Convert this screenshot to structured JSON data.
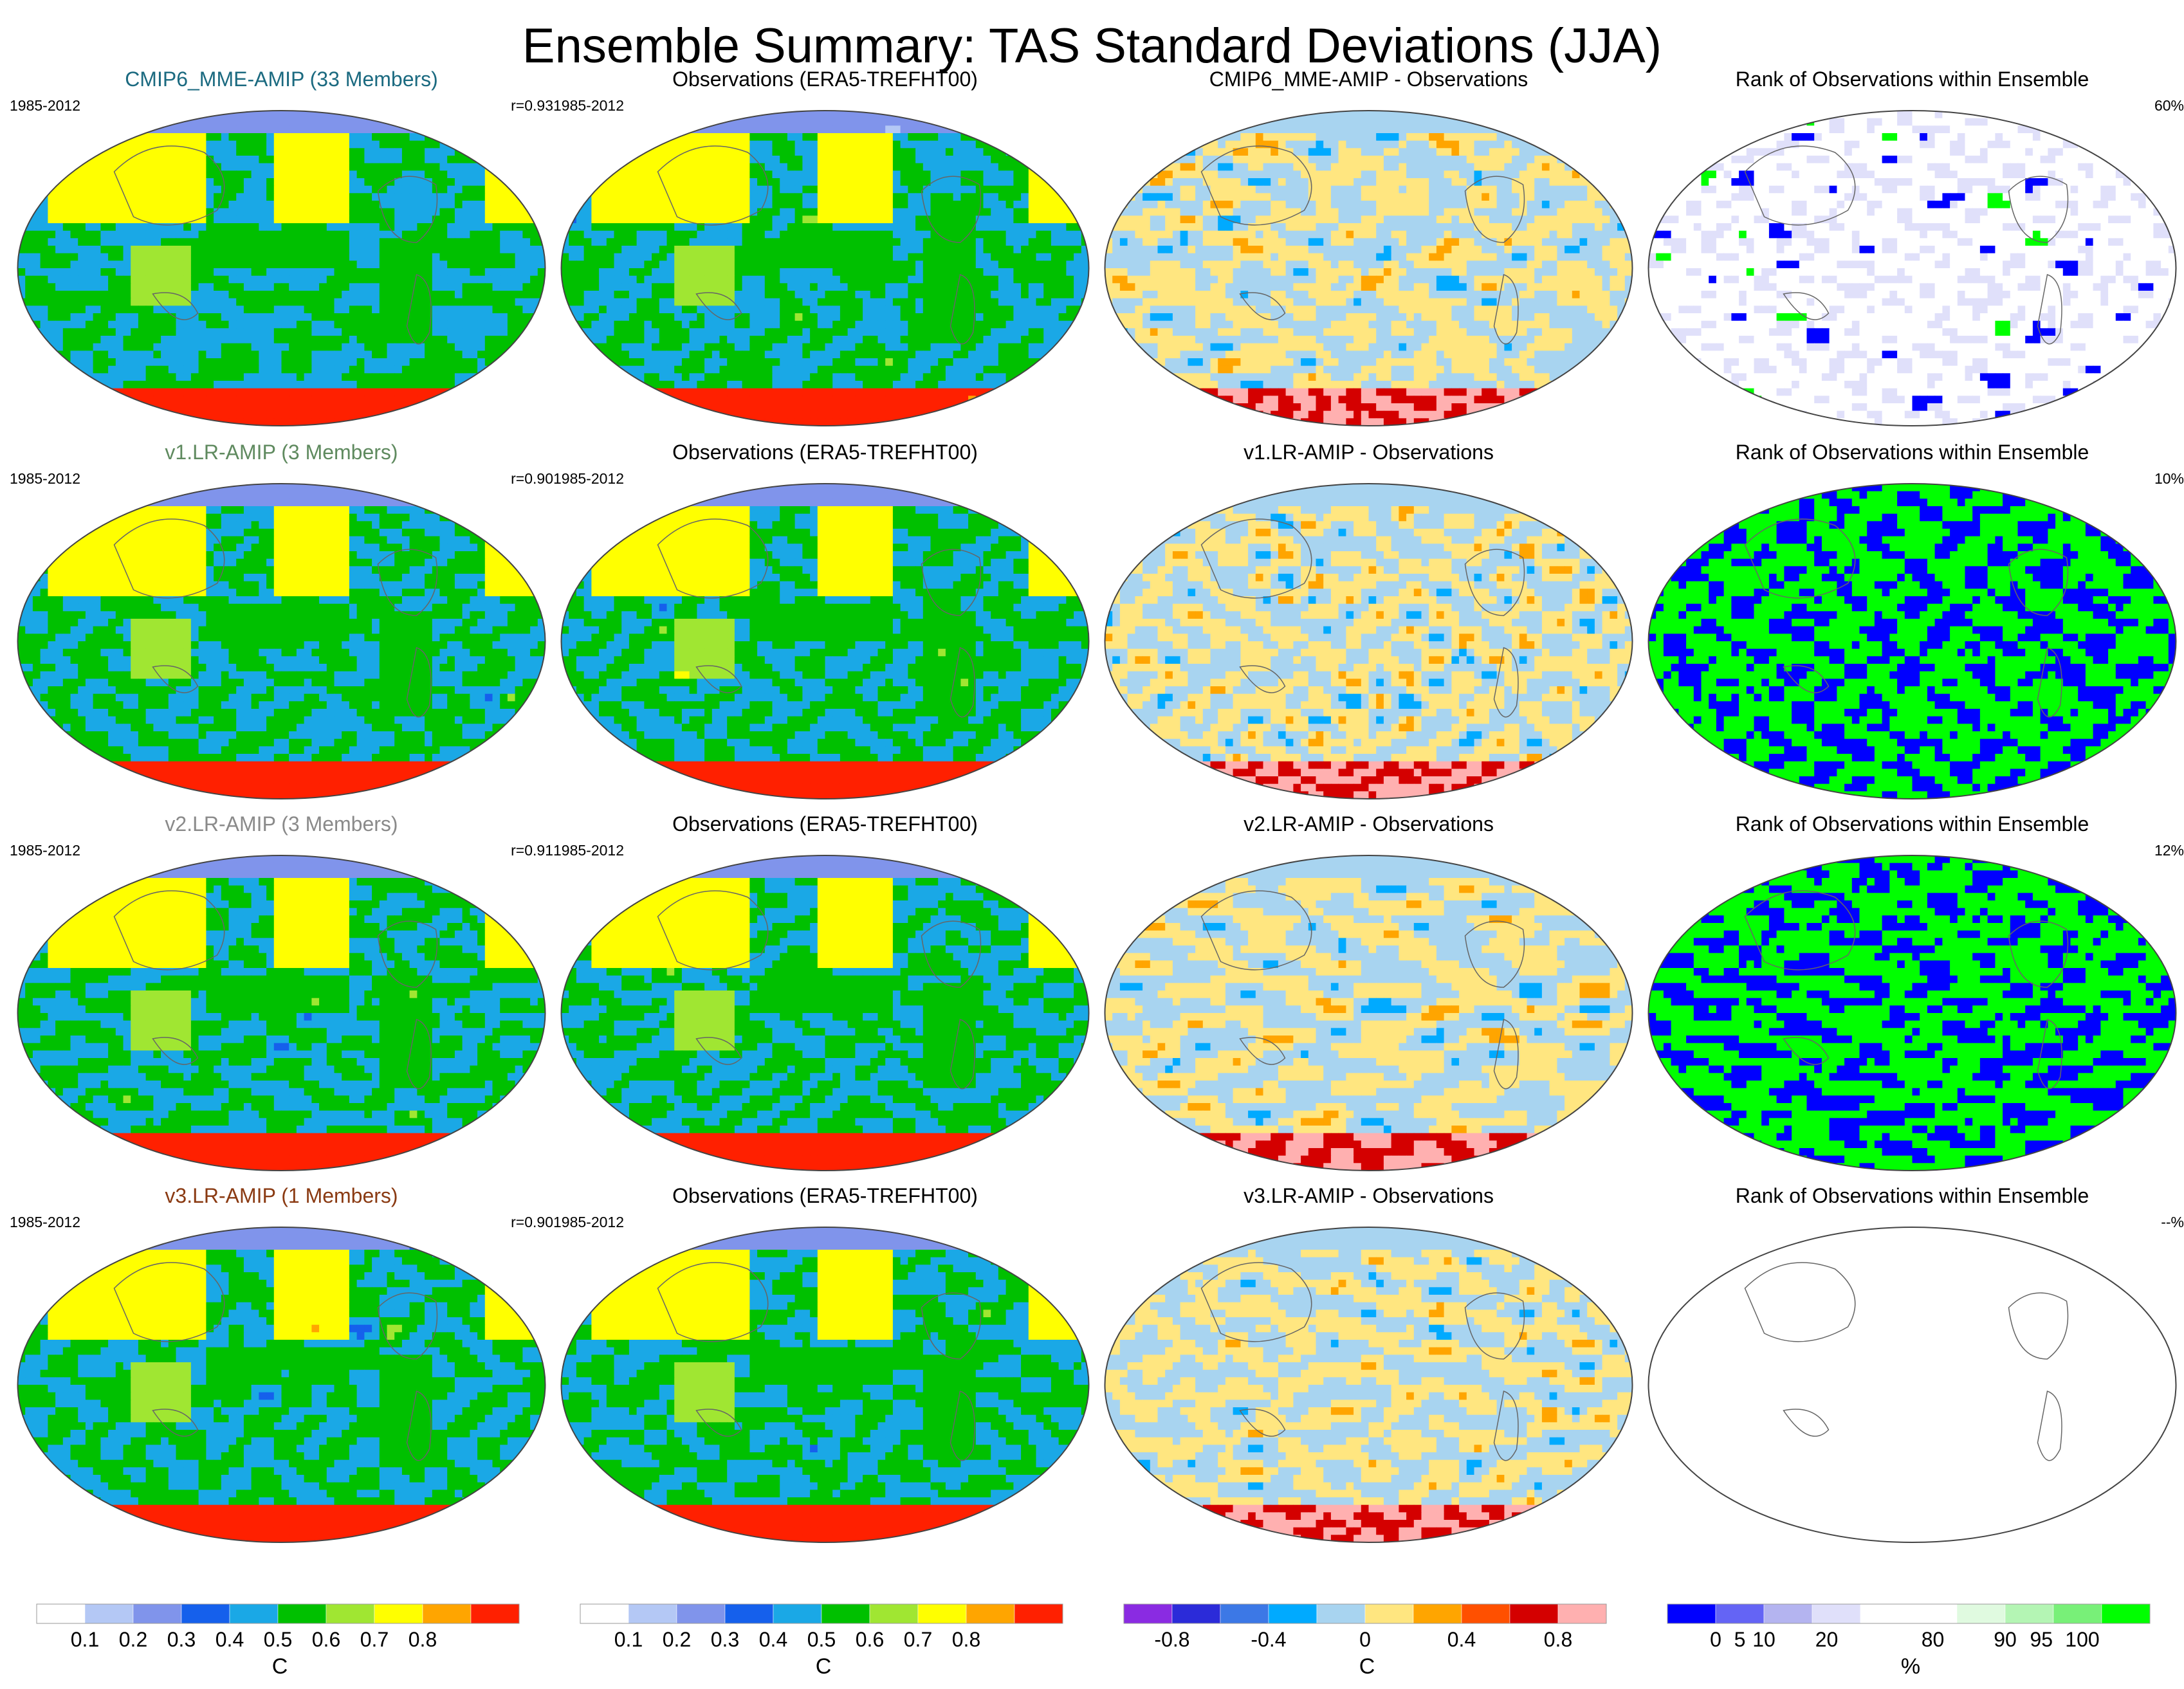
{
  "title": "Ensemble Summary: TAS Standard Deviations (JJA)",
  "chart_data": {
    "type": "heatmap",
    "projection": "robinson global map",
    "rows": [
      {
        "model": {
          "title": "CMIP6_MME-AMIP (33 Members)",
          "title_color": "#1b6a80",
          "period": "1985-2012",
          "stat": "r=0.93"
        },
        "obs": {
          "title": "Observations (ERA5-TREFHT00)",
          "period": "1985-2012"
        },
        "diff": {
          "title": "CMIP6_MME-AMIP - Observations"
        },
        "rank": {
          "title": "Rank of Observations within Ensemble",
          "stat": "60%"
        }
      },
      {
        "model": {
          "title": "v1.LR-AMIP (3 Members)",
          "title_color": "#5f8a5f",
          "period": "1985-2012",
          "stat": "r=0.90"
        },
        "obs": {
          "title": "Observations (ERA5-TREFHT00)",
          "period": "1985-2012"
        },
        "diff": {
          "title": "v1.LR-AMIP - Observations"
        },
        "rank": {
          "title": "Rank of Observations within Ensemble",
          "stat": "10%"
        }
      },
      {
        "model": {
          "title": "v2.LR-AMIP (3 Members)",
          "title_color": "#8a8a8a",
          "period": "1985-2012",
          "stat": "r=0.91"
        },
        "obs": {
          "title": "Observations (ERA5-TREFHT00)",
          "period": "1985-2012"
        },
        "diff": {
          "title": "v2.LR-AMIP - Observations"
        },
        "rank": {
          "title": "Rank of Observations within Ensemble",
          "stat": "12%"
        }
      },
      {
        "model": {
          "title": "v3.LR-AMIP (1 Members)",
          "title_color": "#8a3a12",
          "period": "1985-2012",
          "stat": "r=0.90"
        },
        "obs": {
          "title": "Observations (ERA5-TREFHT00)",
          "period": "1985-2012"
        },
        "diff": {
          "title": "v3.LR-AMIP - Observations"
        },
        "rank": {
          "title": "Rank of Observations within Ensemble",
          "stat": "--%"
        }
      }
    ],
    "colorbars": [
      {
        "id": "model",
        "unit": "C",
        "colors": [
          "#ffffff",
          "#b4c8f5",
          "#8094eb",
          "#1560ec",
          "#1aa8e6",
          "#00c000",
          "#a0e632",
          "#ffff00",
          "#ffa500",
          "#ff2000"
        ],
        "labels": [
          "0.1",
          "0.2",
          "0.3",
          "0.4",
          "0.5",
          "0.6",
          "0.7",
          "0.8"
        ],
        "label_pos": [
          1,
          2,
          3,
          4,
          5,
          6,
          7,
          8
        ]
      },
      {
        "id": "obs",
        "unit": "C",
        "colors": [
          "#ffffff",
          "#b4c8f5",
          "#8094eb",
          "#1560ec",
          "#1aa8e6",
          "#00c000",
          "#a0e632",
          "#ffff00",
          "#ffa500",
          "#ff2000"
        ],
        "labels": [
          "0.1",
          "0.2",
          "0.3",
          "0.4",
          "0.5",
          "0.6",
          "0.7",
          "0.8"
        ],
        "label_pos": [
          1,
          2,
          3,
          4,
          5,
          6,
          7,
          8
        ]
      },
      {
        "id": "diff",
        "unit": "C",
        "colors": [
          "#8a2be2",
          "#2b2bd9",
          "#3c78e6",
          "#00aaff",
          "#a8d4f0",
          "#ffe680",
          "#ffa500",
          "#ff5000",
          "#d40000",
          "#ffb0b0"
        ],
        "labels": [
          "-0.8",
          "-0.4",
          "0",
          "0.4",
          "0.8"
        ],
        "label_pos": [
          1,
          3,
          5,
          7,
          9
        ]
      },
      {
        "id": "rank",
        "unit": "%",
        "colors": [
          "#0000ff",
          "#6464f5",
          "#b4b4f0",
          "#e0e0fa",
          "#ffffff",
          "#ffffff",
          "#e0fae0",
          "#b4f5b4",
          "#78f078",
          "#00ff00"
        ],
        "labels": [
          "0",
          "5",
          "10",
          "20",
          "80",
          "90",
          "95",
          "100"
        ],
        "label_pos": [
          1,
          1.5,
          2,
          3.3,
          5.5,
          7,
          7.75,
          8.6
        ]
      }
    ]
  }
}
